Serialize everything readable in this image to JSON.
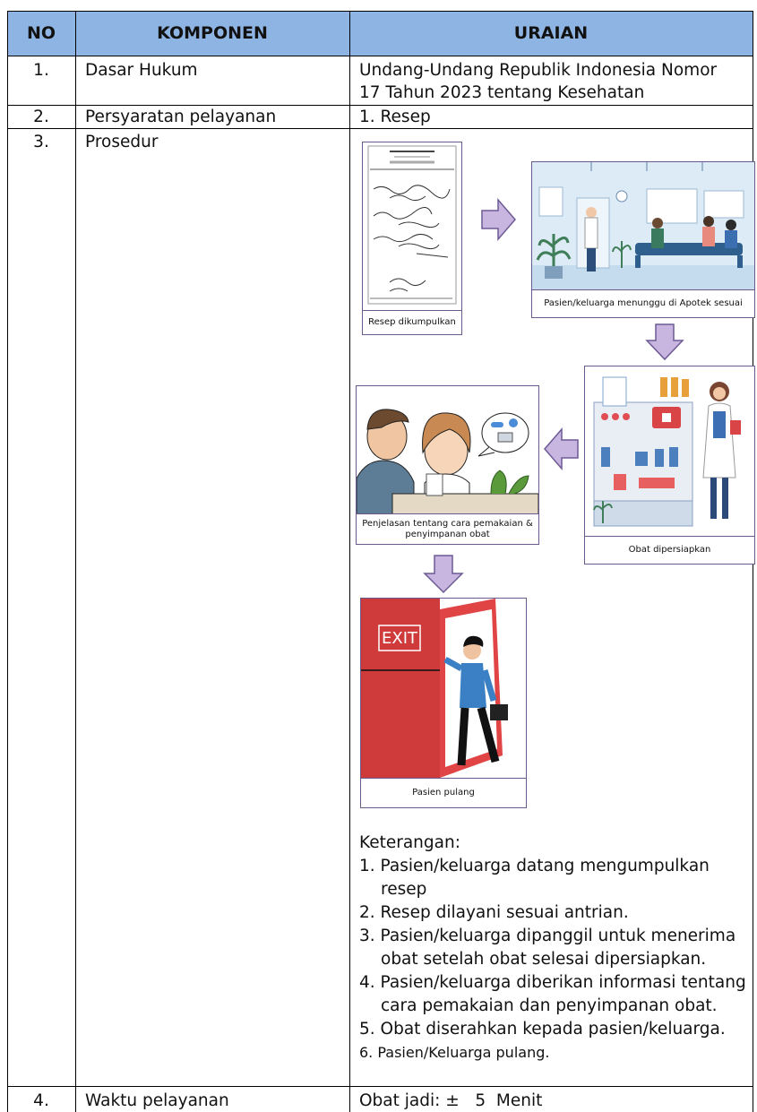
{
  "table": {
    "header": [
      "NO",
      "KOMPONEN",
      "URAIAN"
    ],
    "rows": [
      {
        "no": "1.",
        "komponen": "Dasar Hukum",
        "uraian": [
          "Undang-Undang Republik Indonesia Nomor",
          "17 Tahun 2023 tentang Kesehatan"
        ]
      },
      {
        "no": "2.",
        "komponen": "Persyaratan pelayanan",
        "uraian": [
          "1. Resep"
        ]
      },
      {
        "no": "3.",
        "komponen": "Prosedur",
        "figures": [
          {
            "caption": "Resep dikumpulkan"
          },
          {
            "caption": "Pasien/keluarga menunggu di Apotek sesuai"
          },
          {
            "caption": "Obat dipersiapkan"
          },
          {
            "caption": "Penjelasan tentang cara pemakaian & penyimpanan obat"
          },
          {
            "caption": "Pasien pulang",
            "sign": "EXIT"
          }
        ],
        "keterangan": {
          "title": "Keterangan:",
          "items": [
            "1. Pasien/keluarga datang mengumpulkan resep",
            "2. Resep dilayani sesuai antrian.",
            "3. Pasien/keluarga dipanggil untuk menerima obat setelah obat selesai dipersiapkan.",
            "4. Pasien/keluarga  diberikan informasi tentang cara pemakaian dan penyimpanan obat.",
            "5. Obat diserahkan kepada pasien/keluarga.",
            "6. Pasien/Keluarga pulang."
          ]
        }
      },
      {
        "no": "4.",
        "komponen": "Waktu pelayanan",
        "uraian": [
          "Obat jadi: ±   5  Menit"
        ]
      }
    ]
  }
}
